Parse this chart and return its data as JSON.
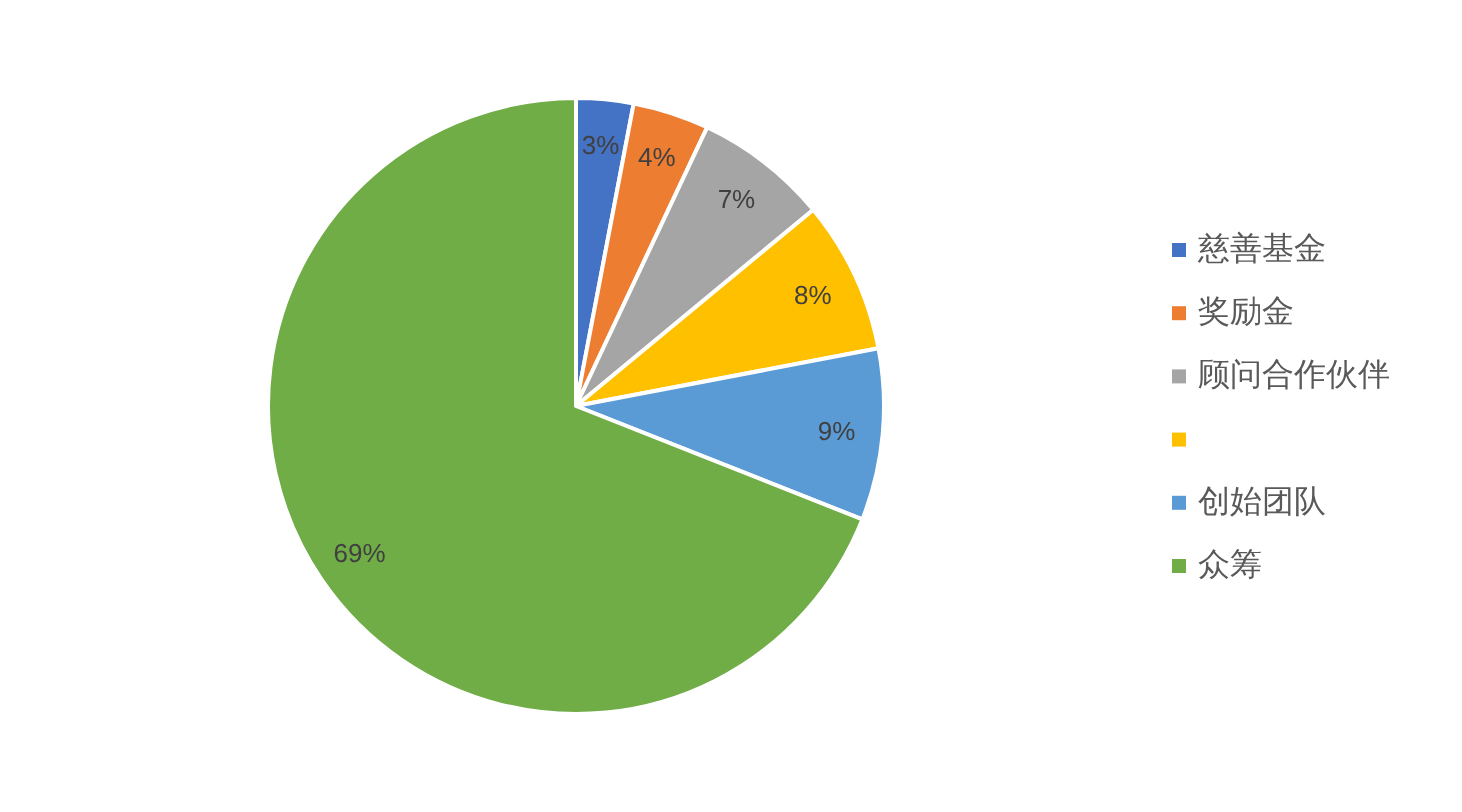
{
  "chart_data": {
    "type": "pie",
    "categories": [
      "慈善基金",
      "奖励金",
      "顾问合作伙伴",
      null,
      "创始团队",
      "众筹"
    ],
    "values": [
      3,
      4,
      7,
      8,
      9,
      69
    ],
    "colors": [
      "#4472c4",
      "#ed7d31",
      "#a5a5a5",
      "#ffc000",
      "#5b9bd5",
      "#70ad47"
    ],
    "value_labels": [
      "3%",
      "4%",
      "7%",
      "8%",
      "9%",
      "69%"
    ],
    "legend": "right"
  }
}
